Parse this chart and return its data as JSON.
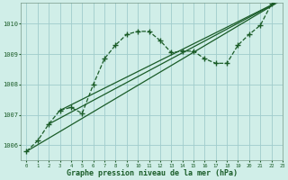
{
  "xlabel": "Graphe pression niveau de la mer (hPa)",
  "background_color": "#d0eee8",
  "plot_bg_color": "#d0eee8",
  "grid_color": "#a0cccc",
  "line_color": "#1a5c28",
  "ylim": [
    1005.5,
    1010.7
  ],
  "xlim": [
    -0.5,
    23
  ],
  "yticks": [
    1006,
    1007,
    1008,
    1009,
    1010
  ],
  "xticks": [
    0,
    1,
    2,
    3,
    4,
    5,
    6,
    7,
    8,
    9,
    10,
    11,
    12,
    13,
    14,
    15,
    16,
    17,
    18,
    19,
    20,
    21,
    22,
    23
  ],
  "series1_x": [
    0,
    1,
    2,
    3,
    4,
    5,
    6,
    7,
    8,
    9,
    10,
    11,
    12,
    13,
    14,
    15,
    16,
    17,
    18,
    19,
    20,
    21,
    22,
    23
  ],
  "series1_y": [
    1005.8,
    1006.15,
    1006.7,
    1007.15,
    1007.25,
    1007.05,
    1008.0,
    1008.85,
    1009.3,
    1009.65,
    1009.75,
    1009.75,
    1009.45,
    1009.05,
    1009.1,
    1009.1,
    1008.85,
    1008.7,
    1008.7,
    1009.3,
    1009.65,
    1009.95,
    1010.65,
    1010.8
  ],
  "line2_x": [
    0,
    23
  ],
  "line2_y": [
    1005.8,
    1010.8
  ],
  "line3_x": [
    2,
    23
  ],
  "line3_y": [
    1006.7,
    1010.8
  ],
  "line4_x": [
    3,
    23
  ],
  "line4_y": [
    1007.15,
    1010.8
  ]
}
